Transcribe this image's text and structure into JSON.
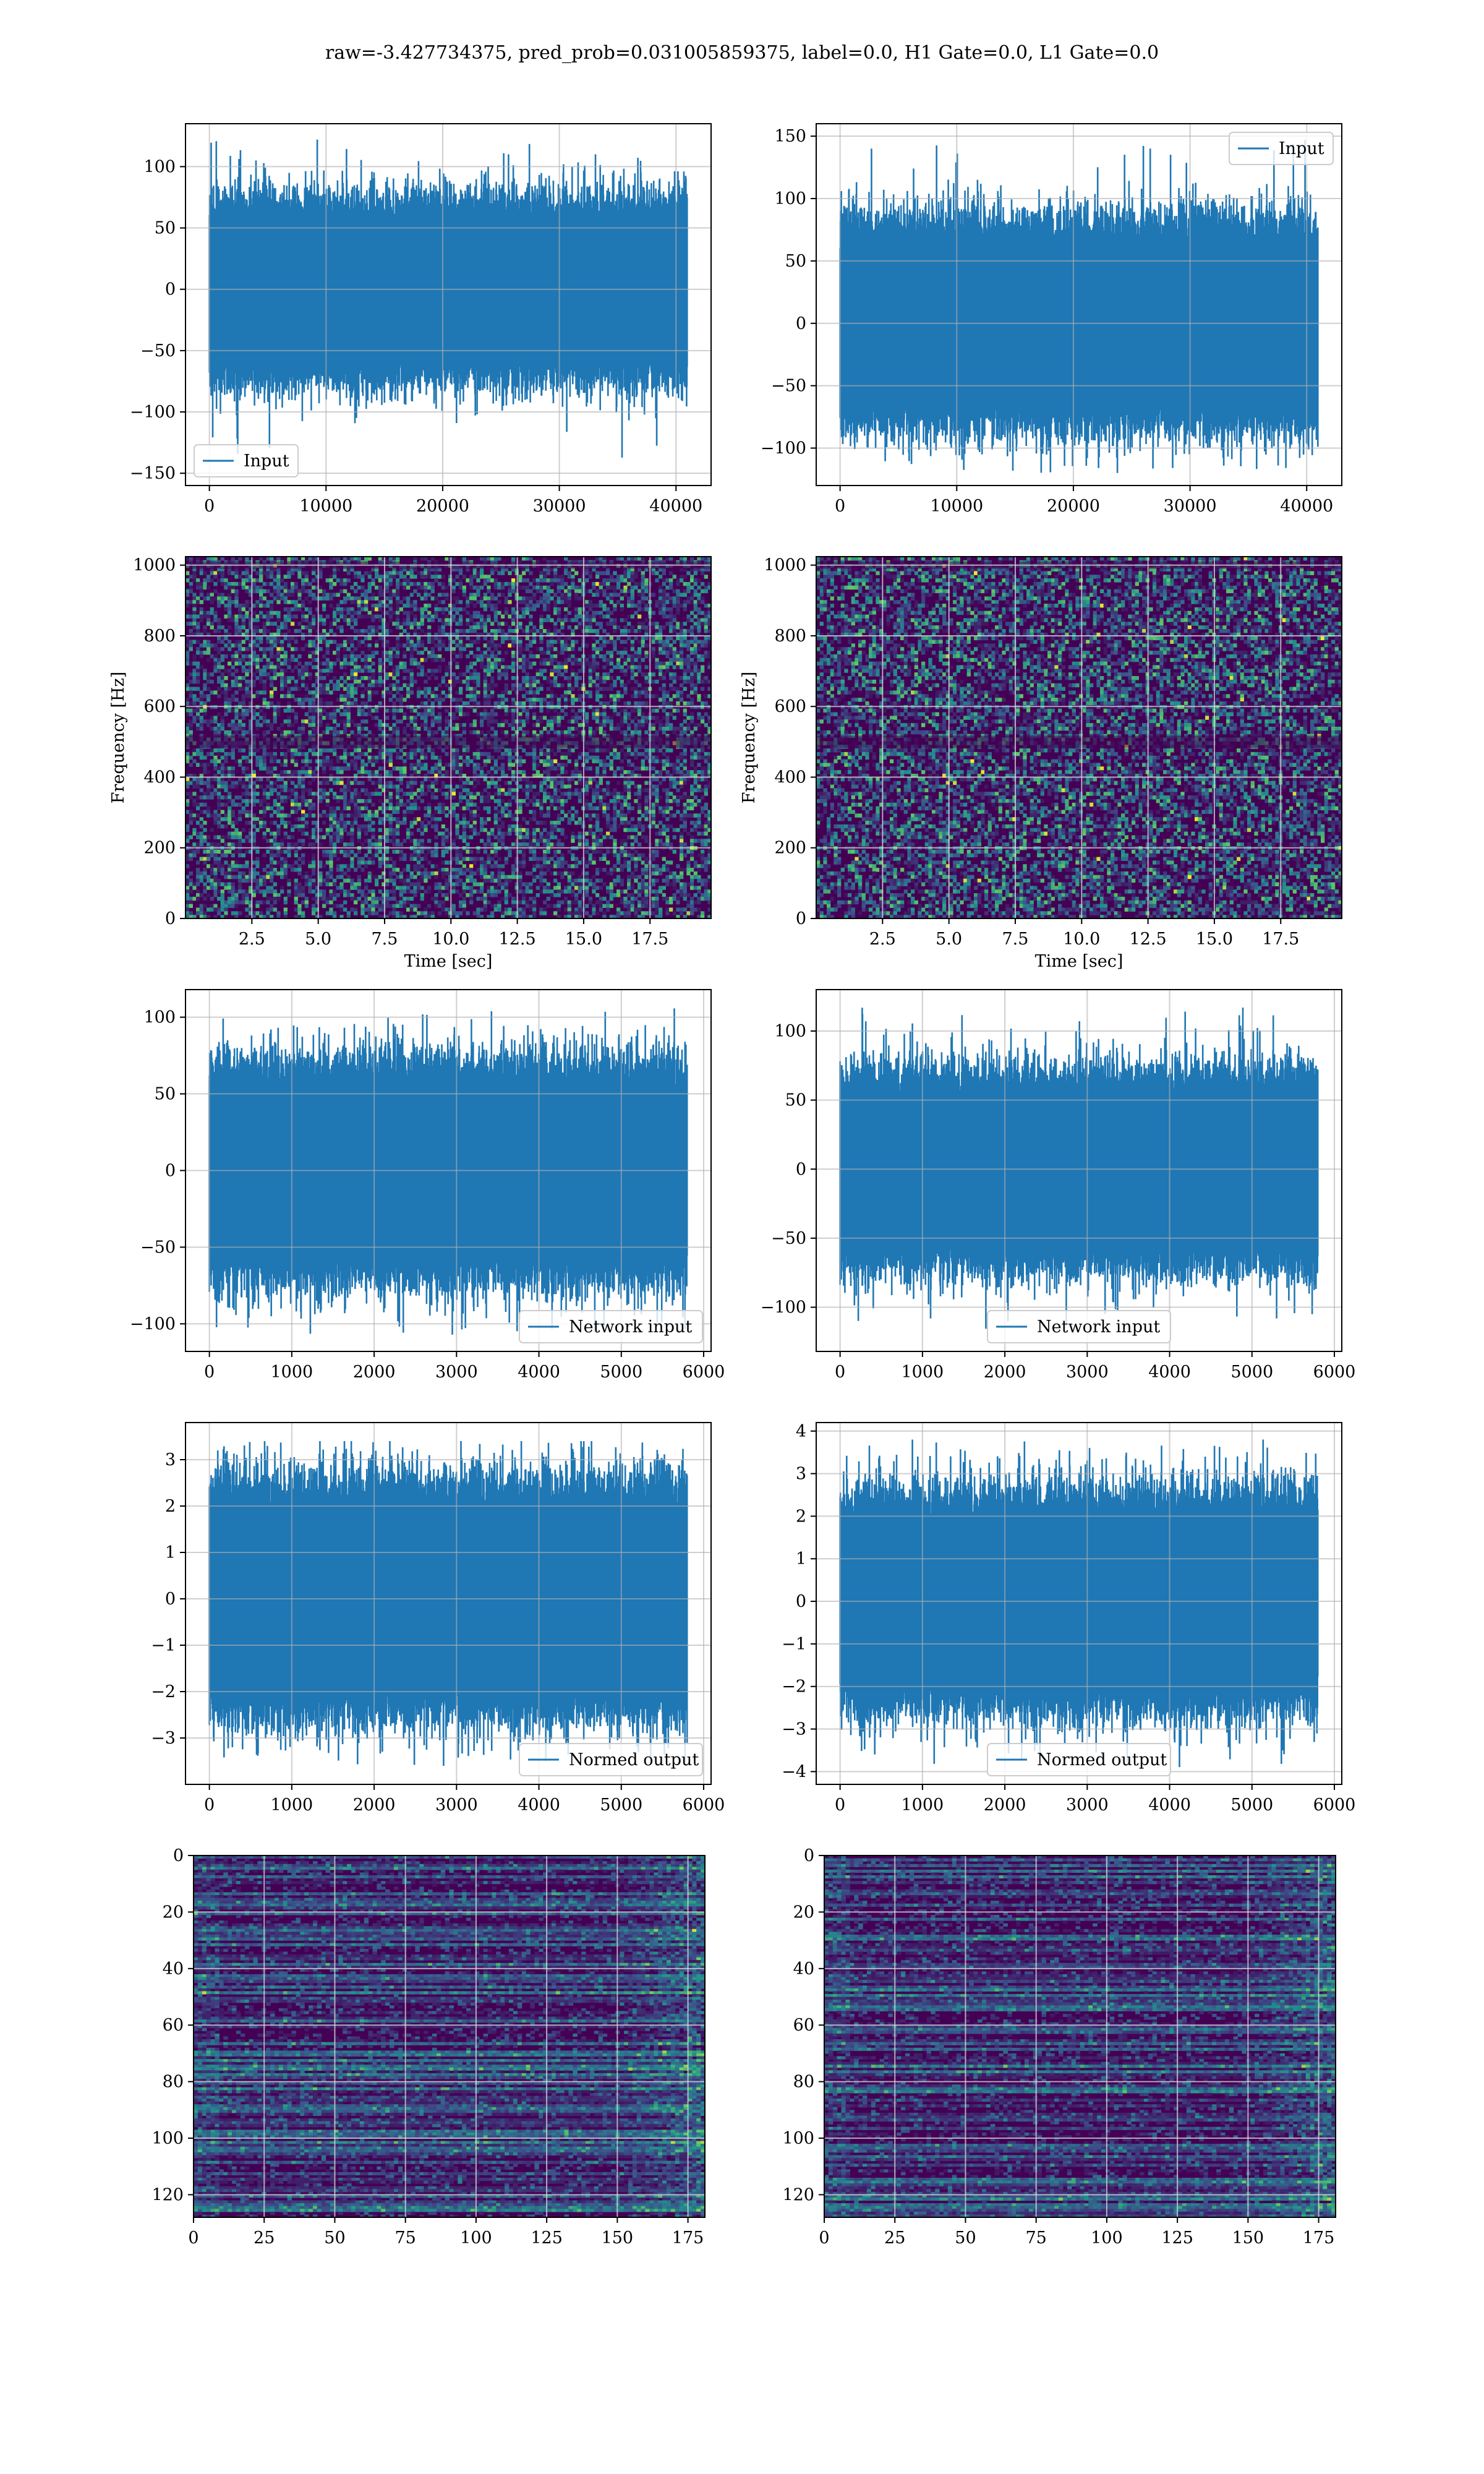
{
  "figure": {
    "suptitle": "raw=-3.427734375, pred_prob=0.031005859375, label=0.0, H1 Gate=0.0, L1 Gate=0.0",
    "colors": {
      "line": "#1f77b4",
      "grid": "#b0b0b0",
      "viridis_dark": "#440154"
    }
  },
  "chart_data": [
    {
      "id": "h1-input",
      "type": "line",
      "signal": "random-noise",
      "series": [
        {
          "name": "Input",
          "n_points": 40960,
          "std": 25,
          "max": 122,
          "min": -140
        }
      ],
      "xlim": [
        -2048,
        43008
      ],
      "ylim": [
        -160,
        135
      ],
      "xticks": [
        0,
        10000,
        20000,
        30000,
        40000
      ],
      "yticks": [
        -150,
        -100,
        -50,
        0,
        50,
        100
      ],
      "legend": "lower-left",
      "grid": true
    },
    {
      "id": "l1-input",
      "type": "line",
      "signal": "random-noise",
      "series": [
        {
          "name": "Input",
          "n_points": 40960,
          "std": 28,
          "max": 147,
          "min": -120
        }
      ],
      "xlim": [
        -2048,
        43008
      ],
      "ylim": [
        -130,
        160
      ],
      "xticks": [
        0,
        10000,
        20000,
        30000,
        40000
      ],
      "yticks": [
        -100,
        -50,
        0,
        50,
        100,
        150
      ],
      "legend": "upper-right",
      "grid": true
    },
    {
      "id": "h1-spectrogram",
      "type": "heatmap",
      "colormap": "viridis",
      "xlabel": "Time [sec]",
      "ylabel": "Frequency [Hz]",
      "xlim": [
        0,
        19.8
      ],
      "ylim": [
        0,
        1024
      ],
      "xticks": [
        2.5,
        5.0,
        7.5,
        10.0,
        12.5,
        15.0,
        17.5
      ],
      "yticks": [
        0,
        200,
        400,
        600,
        800,
        1000
      ],
      "grid": true
    },
    {
      "id": "l1-spectrogram",
      "type": "heatmap",
      "colormap": "viridis",
      "xlabel": "Time [sec]",
      "ylabel": "Frequency [Hz]",
      "xlim": [
        0,
        19.8
      ],
      "ylim": [
        0,
        1024
      ],
      "xticks": [
        2.5,
        5.0,
        7.5,
        10.0,
        12.5,
        15.0,
        17.5
      ],
      "yticks": [
        0,
        200,
        400,
        600,
        800,
        1000
      ],
      "grid": true
    },
    {
      "id": "h1-network-input",
      "type": "line",
      "signal": "random-noise",
      "series": [
        {
          "name": "Network input",
          "n_points": 5800,
          "std": 24,
          "max": 107,
          "min": -108
        }
      ],
      "xlim": [
        -290,
        6090
      ],
      "ylim": [
        -118,
        118
      ],
      "xticks": [
        0,
        1000,
        2000,
        3000,
        4000,
        5000,
        6000
      ],
      "yticks": [
        -100,
        -50,
        0,
        50,
        100
      ],
      "legend": "lower-right",
      "grid": true
    },
    {
      "id": "l1-network-input",
      "type": "line",
      "signal": "random-noise",
      "series": [
        {
          "name": "Network input",
          "n_points": 5800,
          "std": 24,
          "max": 117,
          "min": -118
        }
      ],
      "xlim": [
        -290,
        6090
      ],
      "ylim": [
        -132,
        130
      ],
      "xticks": [
        0,
        1000,
        2000,
        3000,
        4000,
        5000,
        6000
      ],
      "yticks": [
        -100,
        -50,
        0,
        50,
        100
      ],
      "legend": "lower-center",
      "grid": true
    },
    {
      "id": "h1-normed-output",
      "type": "line",
      "signal": "random-noise",
      "series": [
        {
          "name": "Normed output",
          "n_points": 5800,
          "std": 0.85,
          "max": 3.4,
          "min": -3.6
        }
      ],
      "xlim": [
        -290,
        6090
      ],
      "ylim": [
        -4.0,
        3.8
      ],
      "xticks": [
        0,
        1000,
        2000,
        3000,
        4000,
        5000,
        6000
      ],
      "yticks": [
        -3,
        -2,
        -1,
        0,
        1,
        2,
        3
      ],
      "legend": "lower-right",
      "grid": true
    },
    {
      "id": "l1-normed-output",
      "type": "line",
      "signal": "random-noise",
      "series": [
        {
          "name": "Normed output",
          "n_points": 5800,
          "std": 0.85,
          "max": 3.8,
          "min": -3.9
        }
      ],
      "xlim": [
        -290,
        6090
      ],
      "ylim": [
        -4.3,
        4.2
      ],
      "xticks": [
        0,
        1000,
        2000,
        3000,
        4000,
        5000,
        6000
      ],
      "yticks": [
        -4,
        -3,
        -2,
        -1,
        0,
        1,
        2,
        3,
        4
      ],
      "legend": "lower-center",
      "grid": true
    },
    {
      "id": "h1-feature-map",
      "type": "heatmap",
      "colormap": "viridis",
      "rows": 128,
      "cols": 181,
      "xlim": [
        0,
        181
      ],
      "ylim": [
        128,
        0
      ],
      "xticks": [
        0,
        25,
        50,
        75,
        100,
        125,
        150,
        175
      ],
      "yticks": [
        0,
        20,
        40,
        60,
        80,
        100,
        120
      ],
      "grid": true
    },
    {
      "id": "l1-feature-map",
      "type": "heatmap",
      "colormap": "viridis",
      "rows": 128,
      "cols": 181,
      "xlim": [
        0,
        181
      ],
      "ylim": [
        128,
        0
      ],
      "xticks": [
        0,
        25,
        50,
        75,
        100,
        125,
        150,
        175
      ],
      "yticks": [
        0,
        20,
        40,
        60,
        80,
        100,
        120
      ],
      "grid": true
    }
  ]
}
